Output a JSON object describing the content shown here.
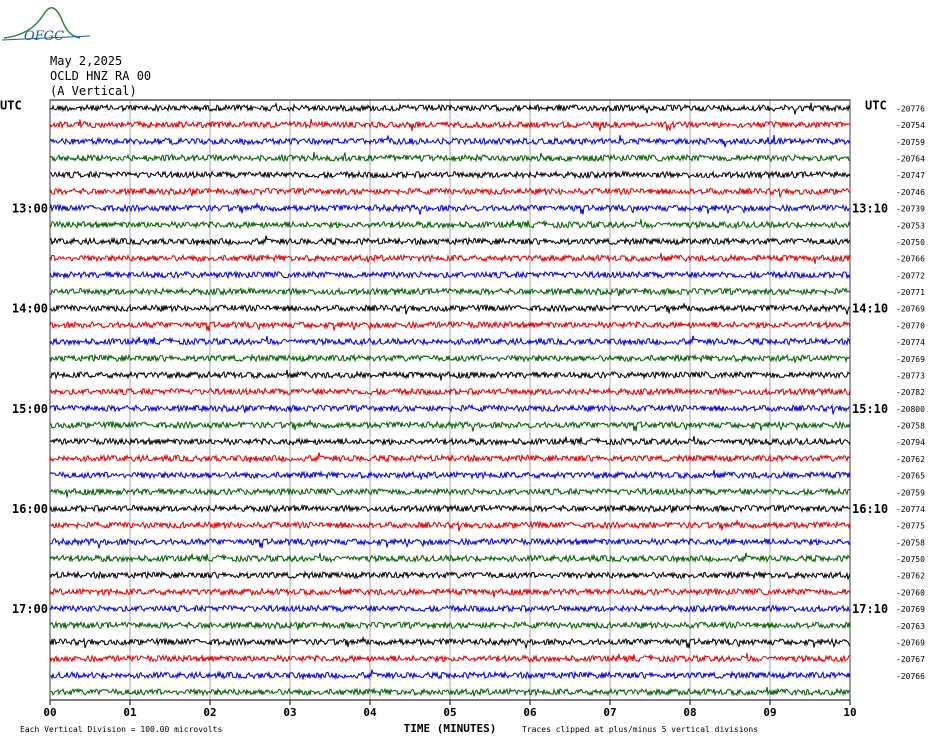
{
  "header": {
    "logo": "OFGC",
    "date": "May 2,2025",
    "station": "OCLD HNZ RA 00",
    "component": "(A Vertical)"
  },
  "rows": {
    "left_labels": [
      "UTC",
      null,
      null,
      null,
      null,
      null,
      "13:00",
      null,
      null,
      null,
      null,
      null,
      "14:00",
      null,
      null,
      null,
      null,
      null,
      "15:00",
      null,
      null,
      null,
      null,
      null,
      "16:00",
      null,
      null,
      null,
      null,
      null,
      "17:00",
      null,
      null,
      null,
      null,
      null
    ],
    "right_labels": [
      "UTC",
      null,
      null,
      null,
      null,
      null,
      "13:10",
      null,
      null,
      null,
      null,
      null,
      "14:10",
      null,
      null,
      null,
      null,
      null,
      "15:10",
      null,
      null,
      null,
      null,
      null,
      "16:10",
      null,
      null,
      null,
      null,
      null,
      "17:10",
      null,
      null,
      null,
      null,
      null
    ],
    "offsets": [
      "-20776",
      "-20754",
      "-20759",
      "-20764",
      "-20747",
      "-20746",
      "-20739",
      "-20753",
      "-20750",
      "-20766",
      "-20772",
      "-20771",
      "-20769",
      "-20770",
      "-20774",
      "-20769",
      "-20773",
      "-20782",
      "-20800",
      "-20758",
      "-20794",
      "-20762",
      "-20765",
      "-20759",
      "-20774",
      "-20775",
      "-20758",
      "-20750",
      "-20762",
      "-20760",
      "-20769",
      "-20763",
      "-20769",
      "-20767",
      "-20766"
    ],
    "colors": [
      "#000000",
      "#e00000",
      "#0000e0",
      "#006000"
    ]
  },
  "x_axis": {
    "title": "TIME (MINUTES)",
    "ticks": [
      "00",
      "01",
      "02",
      "03",
      "04",
      "05",
      "06",
      "07",
      "08",
      "09",
      "10"
    ]
  },
  "footer": {
    "scale_note": "Each Vertical Division =  100.00 microvolts",
    "clip_note": "Traces clipped at plus/minus 5 vertical divisions"
  }
}
